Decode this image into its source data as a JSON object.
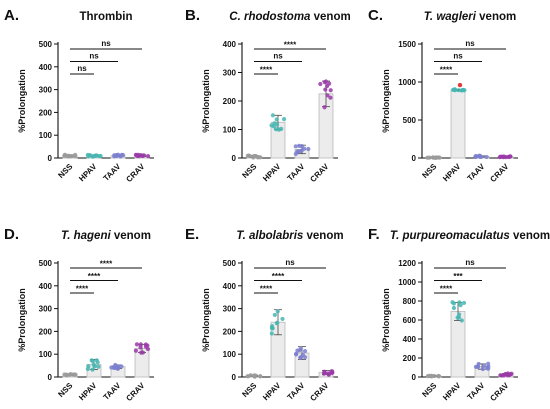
{
  "colors": {
    "NSS": "#9a9a9a",
    "HPAV": "#47b6b2",
    "TAAV": "#7b7fcf",
    "CRAV": "#9a3aa8",
    "outlier": "#e23b3b",
    "bar_fill": "#ececec"
  },
  "chart_data": [
    {
      "type": "bar",
      "letter": "A.",
      "title_plain": "Thrombin",
      "ylabel": "%Prolongation",
      "categories": [
        "NSS",
        "HPAV",
        "TAAV",
        "CRAV"
      ],
      "values": [
        10,
        10,
        10,
        10
      ],
      "spread": [
        4,
        4,
        4,
        4
      ],
      "ylim": [
        0,
        500
      ],
      "yticks": [
        "0",
        "100",
        "200",
        "300",
        "400",
        "500"
      ],
      "comparisons": [
        {
          "from": "NSS",
          "to": "HPAV",
          "label": "ns"
        },
        {
          "from": "NSS",
          "to": "TAAV",
          "label": "ns"
        },
        {
          "from": "NSS",
          "to": "CRAV",
          "label": "ns"
        }
      ]
    },
    {
      "type": "bar",
      "letter": "B.",
      "title_species": "C. rhodostoma",
      "title_suffix": "venom",
      "ylabel": "%Prolongation",
      "categories": [
        "NSS",
        "HPAV",
        "TAAV",
        "CRAV"
      ],
      "values": [
        5,
        125,
        30,
        225
      ],
      "spread": [
        3,
        25,
        15,
        45
      ],
      "ylim": [
        0,
        400
      ],
      "yticks": [
        "0",
        "100",
        "200",
        "300",
        "400"
      ],
      "comparisons": [
        {
          "from": "NSS",
          "to": "HPAV",
          "label": "****"
        },
        {
          "from": "NSS",
          "to": "TAAV",
          "label": "ns"
        },
        {
          "from": "NSS",
          "to": "CRAV",
          "label": "****"
        }
      ]
    },
    {
      "type": "bar",
      "letter": "C.",
      "title_species": "T. wagleri",
      "title_suffix": "venom",
      "ylabel": "%Prolongation",
      "categories": [
        "NSS",
        "HPAV",
        "TAAV",
        "CRAV"
      ],
      "values": [
        5,
        895,
        20,
        15
      ],
      "spread": [
        3,
        8,
        8,
        6
      ],
      "outliers": [
        {
          "category": "HPAV",
          "value": 960
        }
      ],
      "ylim": [
        0,
        1500
      ],
      "yticks": [
        "0",
        "500",
        "1000",
        "1500"
      ],
      "comparisons": [
        {
          "from": "NSS",
          "to": "HPAV",
          "label": "****"
        },
        {
          "from": "NSS",
          "to": "TAAV",
          "label": "ns"
        },
        {
          "from": "NSS",
          "to": "CRAV",
          "label": "ns"
        }
      ]
    },
    {
      "type": "bar",
      "letter": "D.",
      "title_species": "T. hageni",
      "title_suffix": "venom",
      "ylabel": "%Prolongation",
      "categories": [
        "NSS",
        "HPAV",
        "TAAV",
        "CRAV"
      ],
      "values": [
        10,
        55,
        45,
        125
      ],
      "spread": [
        3,
        22,
        8,
        18
      ],
      "ylim": [
        0,
        500
      ],
      "yticks": [
        "0",
        "100",
        "200",
        "300",
        "400",
        "500"
      ],
      "comparisons": [
        {
          "from": "NSS",
          "to": "HPAV",
          "label": "****"
        },
        {
          "from": "NSS",
          "to": "TAAV",
          "label": "****"
        },
        {
          "from": "NSS",
          "to": "CRAV",
          "label": "****"
        }
      ]
    },
    {
      "type": "bar",
      "letter": "E.",
      "title_species": "T. albolabris",
      "title_suffix": "venom",
      "ylabel": "%Prolongation",
      "categories": [
        "NSS",
        "HPAV",
        "TAAV",
        "CRAV"
      ],
      "values": [
        5,
        240,
        105,
        20
      ],
      "spread": [
        3,
        55,
        28,
        9
      ],
      "ylim": [
        0,
        500
      ],
      "yticks": [
        "0",
        "100",
        "200",
        "300",
        "400",
        "500"
      ],
      "comparisons": [
        {
          "from": "NSS",
          "to": "HPAV",
          "label": "****"
        },
        {
          "from": "NSS",
          "to": "TAAV",
          "label": "****"
        },
        {
          "from": "NSS",
          "to": "CRAV",
          "label": "ns"
        }
      ]
    },
    {
      "type": "bar",
      "letter": "F.",
      "title_species": "T. purpureomaculatus",
      "title_suffix": "venom",
      "ylabel": "%Prolongation",
      "categories": [
        "NSS",
        "HPAV",
        "TAAV",
        "CRAV"
      ],
      "values": [
        10,
        690,
        110,
        25
      ],
      "spread": [
        4,
        95,
        28,
        12
      ],
      "ylim": [
        0,
        1200
      ],
      "yticks": [
        "0",
        "200",
        "400",
        "600",
        "800",
        "1000",
        "1200"
      ],
      "comparisons": [
        {
          "from": "NSS",
          "to": "HPAV",
          "label": "****"
        },
        {
          "from": "NSS",
          "to": "TAAV",
          "label": "***"
        },
        {
          "from": "NSS",
          "to": "CRAV",
          "label": "ns"
        }
      ]
    }
  ]
}
